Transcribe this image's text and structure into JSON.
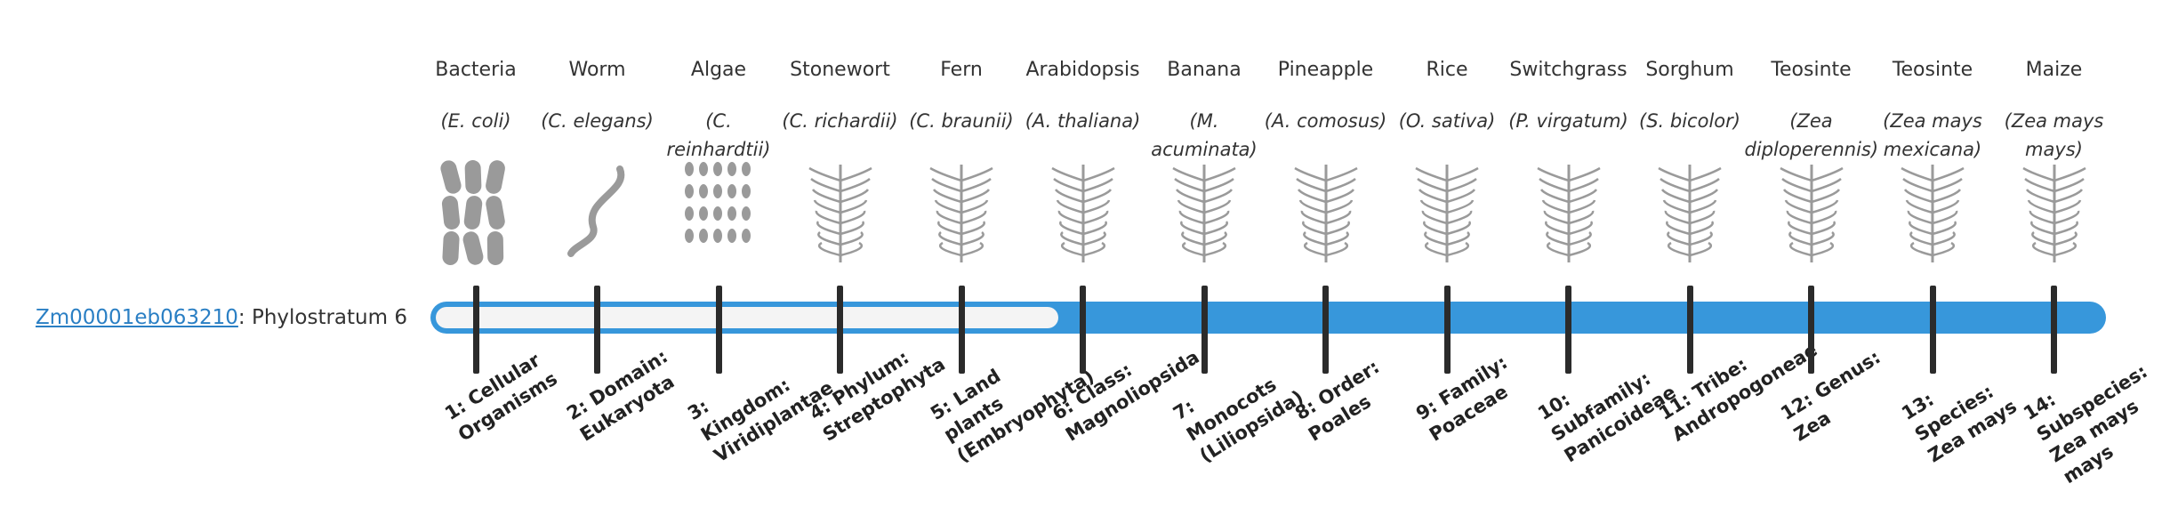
{
  "gene": {
    "id": "Zm00001eb063210",
    "label": "Phylostratum 6"
  },
  "organisms": [
    {
      "name": "Bacteria",
      "latin": "(E. coli)",
      "stratum": "1: Cellular Organisms"
    },
    {
      "name": "Worm",
      "latin": "(C. elegans)",
      "stratum": "2: Domain: Eukaryota"
    },
    {
      "name": "Algae",
      "latin": "(C. reinhardtii)",
      "stratum": "3: Kingdom: Viridiplantae"
    },
    {
      "name": "Stonewort",
      "latin": "(C. richardii)",
      "stratum": "4: Phylum: Streptophyta"
    },
    {
      "name": "Fern",
      "latin": "(C. braunii)",
      "stratum": "5: Land plants (Embryophyta)"
    },
    {
      "name": "Arabidopsis",
      "latin": "(A. thaliana)",
      "stratum": "6: Class: Magnoliopsida"
    },
    {
      "name": "Banana",
      "latin": "(M. acuminata)",
      "stratum": "7: Monocots (Liliopsida)"
    },
    {
      "name": "Pineapple",
      "latin": "(A. comosus)",
      "stratum": "8: Order: Poales"
    },
    {
      "name": "Rice",
      "latin": "(O. sativa)",
      "stratum": "9: Family: Poaceae"
    },
    {
      "name": "Switchgrass",
      "latin": "(P. virgatum)",
      "stratum": "10: Subfamily: Panicoideae"
    },
    {
      "name": "Sorghum",
      "latin": "(S. bicolor)",
      "stratum": "11: Tribe: Andropogoneae"
    },
    {
      "name": "Teosinte",
      "latin": "(Zea diploperennis)",
      "stratum": "12: Genus: Zea"
    },
    {
      "name": "Teosinte",
      "latin": "(Zea mays mexicana)",
      "stratum": "13: Species: Zea mays"
    },
    {
      "name": "Maize",
      "latin": "(Zea mays mays)",
      "stratum": "14: Subspecies: Zea mays mays"
    }
  ]
}
